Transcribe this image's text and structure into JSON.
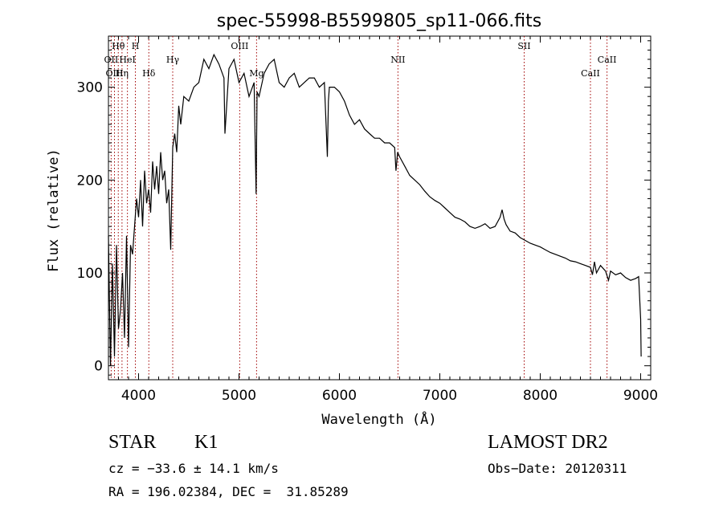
{
  "chart_data": {
    "type": "line",
    "title": "spec-55998-B5599805_sp11-066.fits",
    "xlabel": "Wavelength (Å)",
    "ylabel": "Flux (relative)",
    "xlim": [
      3700,
      9100
    ],
    "ylim": [
      -15,
      355
    ],
    "xticks": [
      4000,
      5000,
      6000,
      7000,
      8000,
      9000
    ],
    "yticks": [
      0,
      100,
      200,
      300
    ],
    "grid": false,
    "series": [
      {
        "x": [
          3700,
          3720,
          3740,
          3760,
          3780,
          3800,
          3820,
          3840,
          3860,
          3880,
          3900,
          3920,
          3940,
          3960,
          3980,
          4000,
          4020,
          4040,
          4060,
          4080,
          4100,
          4120,
          4140,
          4160,
          4180,
          4200,
          4220,
          4240,
          4260,
          4280,
          4300,
          4320,
          4340,
          4360,
          4380,
          4400,
          4420,
          4450,
          4500,
          4550,
          4600,
          4650,
          4700,
          4750,
          4800,
          4850,
          4860,
          4900,
          4950,
          5000,
          5050,
          5100,
          5150,
          5170,
          5180,
          5200,
          5250,
          5300,
          5350,
          5400,
          5450,
          5500,
          5550,
          5600,
          5650,
          5700,
          5750,
          5800,
          5850,
          5880,
          5890,
          5900,
          5950,
          6000,
          6050,
          6100,
          6150,
          6200,
          6250,
          6300,
          6350,
          6400,
          6450,
          6500,
          6550,
          6563,
          6580,
          6600,
          6650,
          6700,
          6750,
          6800,
          6850,
          6900,
          6950,
          7000,
          7050,
          7100,
          7150,
          7200,
          7250,
          7300,
          7350,
          7400,
          7450,
          7500,
          7550,
          7600,
          7620,
          7640,
          7660,
          7700,
          7750,
          7800,
          7850,
          7900,
          7950,
          8000,
          8050,
          8100,
          8150,
          8200,
          8250,
          8300,
          8350,
          8400,
          8450,
          8500,
          8520,
          8540,
          8560,
          8600,
          8650,
          8680,
          8700,
          8750,
          8800,
          8850,
          8900,
          8950,
          8980,
          9000,
          9005
        ],
        "values": [
          140,
          0,
          110,
          10,
          130,
          40,
          60,
          100,
          30,
          140,
          20,
          130,
          120,
          150,
          180,
          160,
          200,
          150,
          210,
          175,
          190,
          165,
          220,
          190,
          215,
          185,
          230,
          200,
          210,
          175,
          190,
          125,
          235,
          250,
          230,
          280,
          260,
          290,
          285,
          300,
          305,
          330,
          320,
          335,
          325,
          310,
          250,
          320,
          330,
          305,
          315,
          290,
          305,
          185,
          295,
          290,
          315,
          325,
          330,
          305,
          300,
          310,
          315,
          300,
          305,
          310,
          310,
          300,
          305,
          225,
          285,
          300,
          300,
          295,
          285,
          270,
          260,
          265,
          255,
          250,
          245,
          245,
          240,
          240,
          235,
          210,
          230,
          225,
          215,
          205,
          200,
          195,
          188,
          182,
          178,
          175,
          170,
          165,
          160,
          158,
          155,
          150,
          148,
          150,
          153,
          148,
          150,
          160,
          168,
          158,
          152,
          145,
          143,
          138,
          135,
          132,
          130,
          128,
          125,
          122,
          120,
          118,
          116,
          113,
          112,
          110,
          108,
          106,
          98,
          112,
          100,
          108,
          102,
          92,
          102,
          98,
          100,
          95,
          92,
          94,
          96,
          50,
          10
        ]
      }
    ],
    "annotations": [
      {
        "label": "OII",
        "x": 3727,
        "row": 2
      },
      {
        "label": "OIII",
        "x": 3760,
        "row": 3
      },
      {
        "label": "Hθ",
        "x": 3798,
        "row": 1
      },
      {
        "label": "Hη",
        "x": 3835,
        "row": 3
      },
      {
        "label": "HeI",
        "x": 3889,
        "row": 2
      },
      {
        "label": "H",
        "x": 3968,
        "row": 1
      },
      {
        "label": "Hδ",
        "x": 4102,
        "row": 3
      },
      {
        "label": "Hγ",
        "x": 4340,
        "row": 2
      },
      {
        "label": "OIII",
        "x": 5007,
        "row": 1
      },
      {
        "label": "Mg",
        "x": 5175,
        "row": 3
      },
      {
        "label": "NII",
        "x": 6583,
        "row": 2
      },
      {
        "label": "SII",
        "x": 7840,
        "row": 1
      },
      {
        "label": "CaII",
        "x": 8500,
        "row": 3
      },
      {
        "label": "CaII",
        "x": 8665,
        "row": 2
      }
    ]
  },
  "info": {
    "class_label": "STAR",
    "subclass": "K1",
    "survey": "LAMOST DR2",
    "cz": "cz = −33.6 ± 14.1 km/s",
    "obs_date": "Obs−Date: 20120311",
    "coords": "RA = 196.02384, DEC =  31.85289"
  },
  "colors": {
    "line": "#000000",
    "marker": "#a00000"
  }
}
